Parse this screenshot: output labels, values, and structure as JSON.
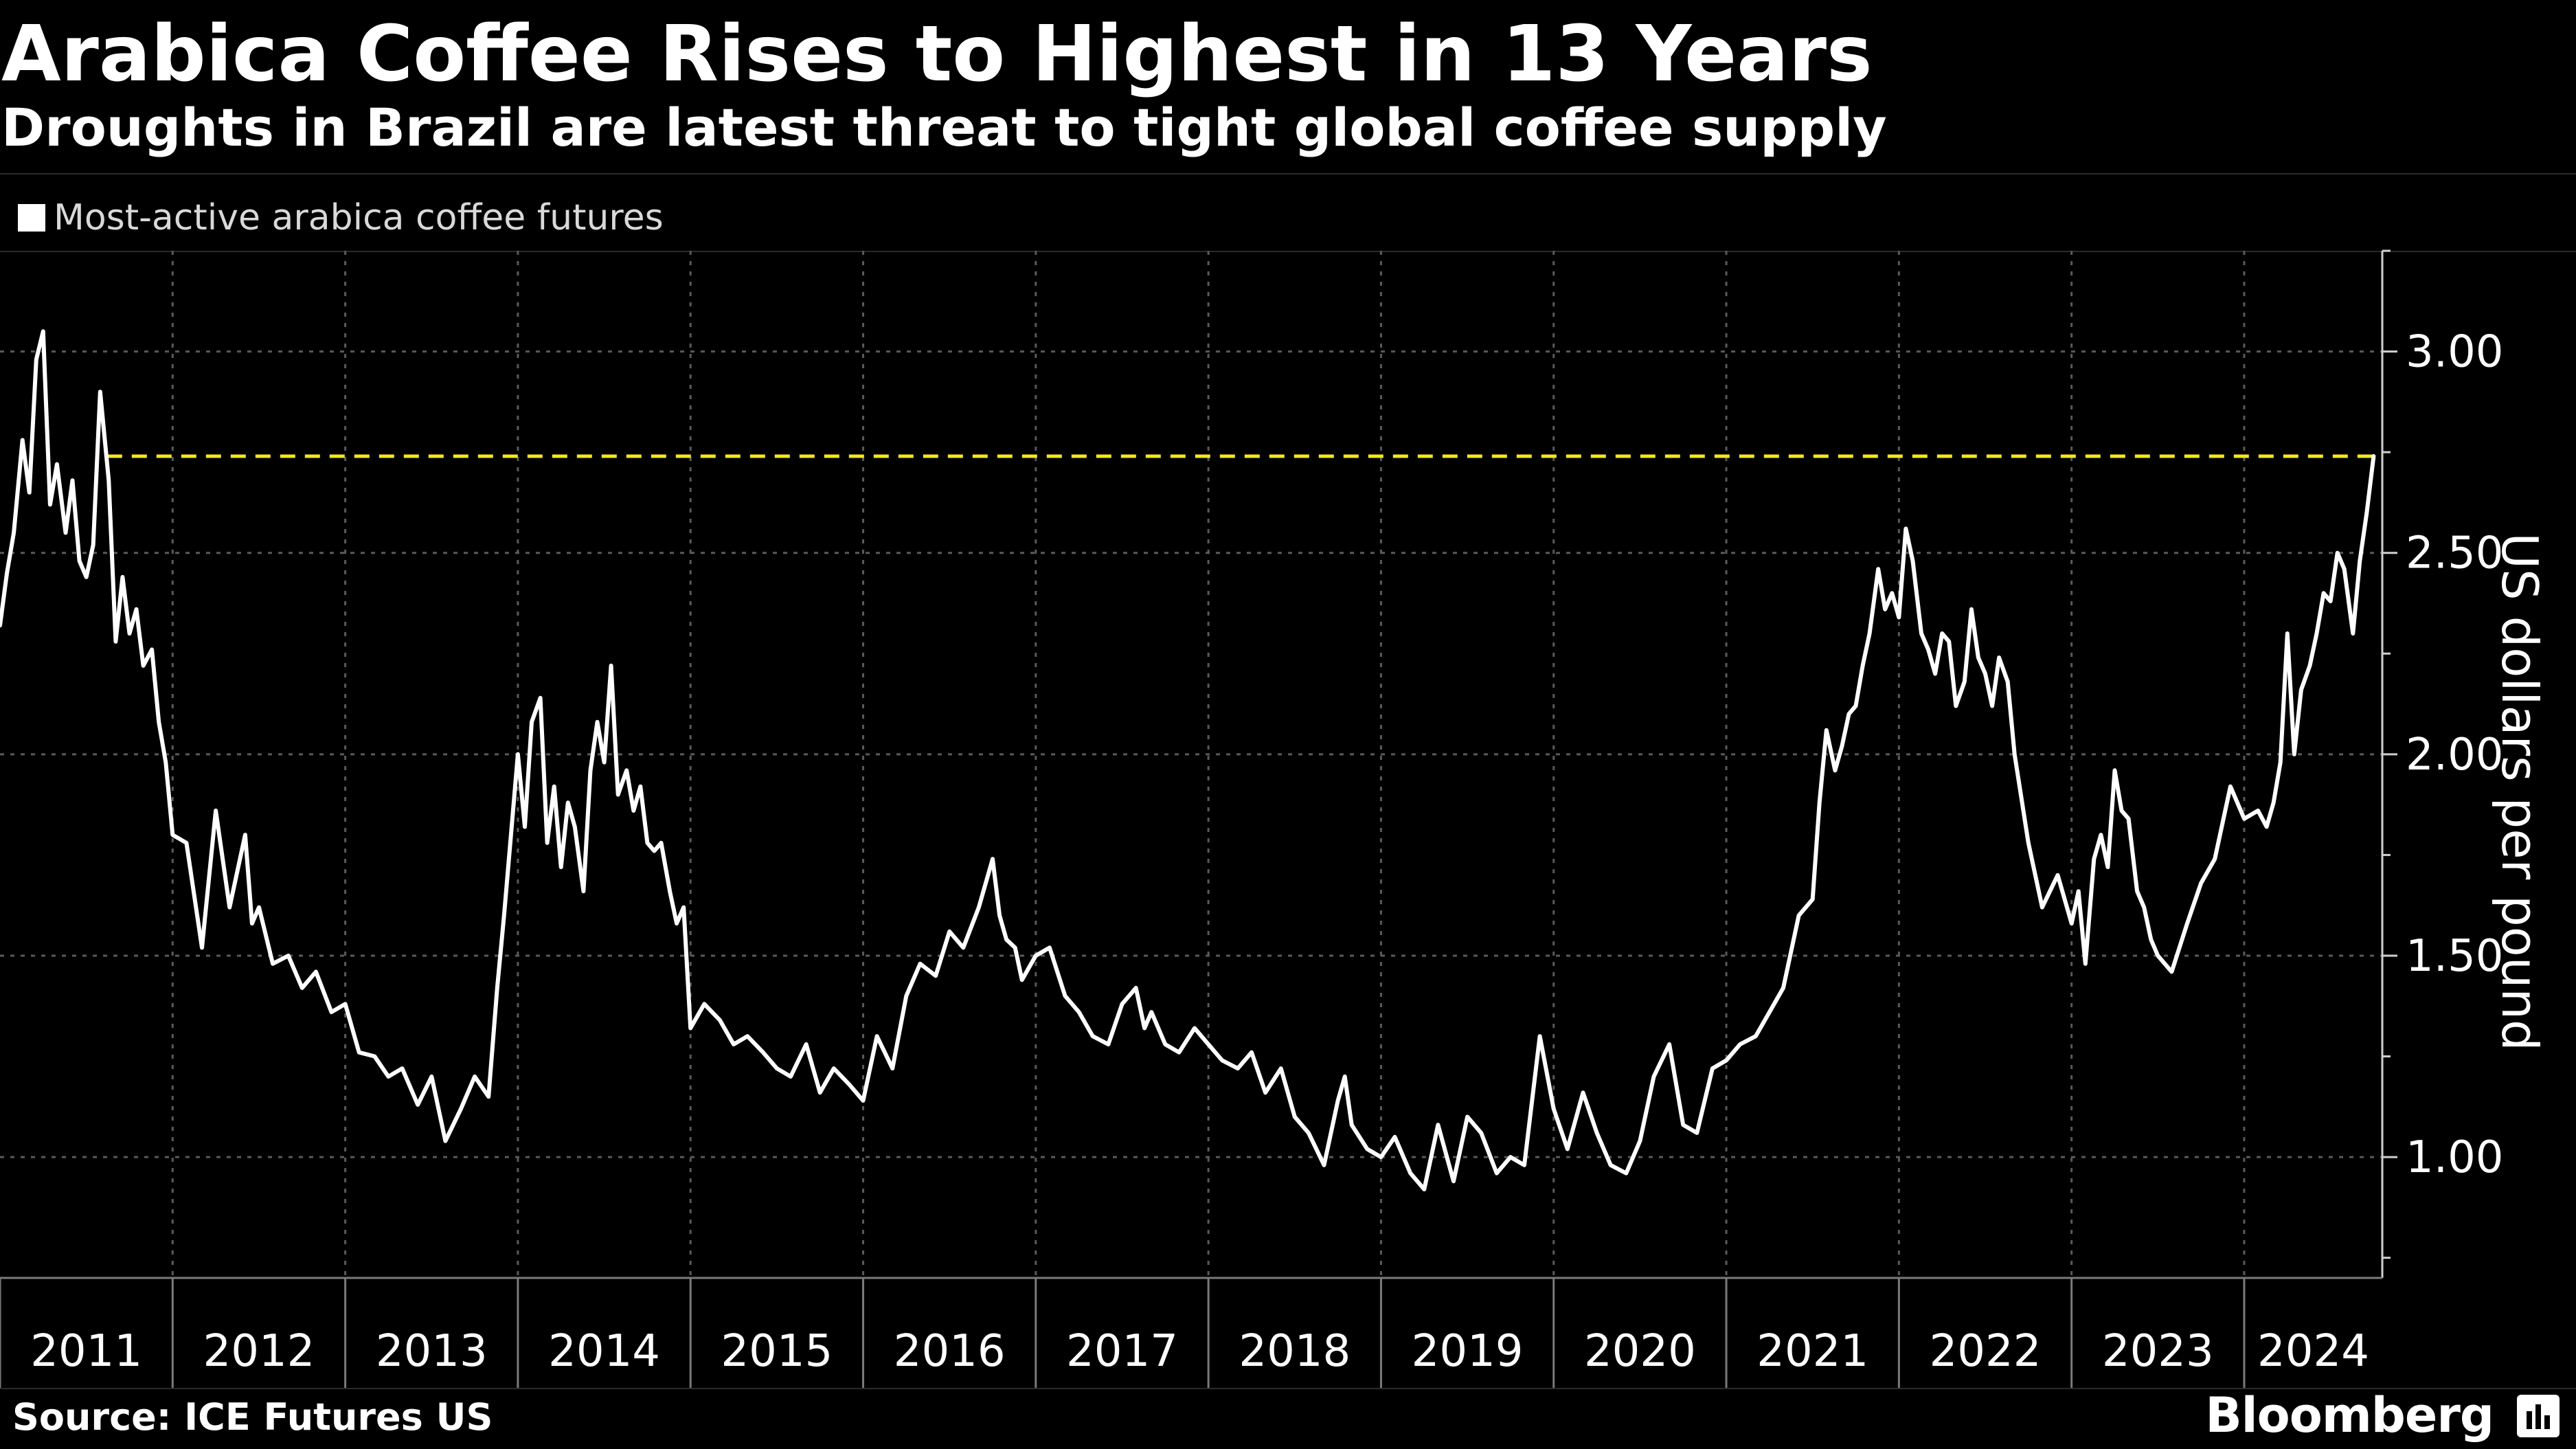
{
  "header": {
    "title": "Arabica Coffee Rises to Highest in 13 Years",
    "subtitle": "Droughts in Brazil are latest threat to tight global coffee supply"
  },
  "legend": {
    "label": "Most-active arabica coffee futures"
  },
  "footer": {
    "source": "Source: ICE Futures US",
    "brand": "Bloomberg",
    "brand_icon": "bloomberg-terminal-icon"
  },
  "colors": {
    "background": "#000000",
    "series": "#ffffff",
    "reference_line": "#f5e71c",
    "grid": "#5a5a5a",
    "text": "#ffffff",
    "muted_text": "#d9d9d9"
  },
  "chart_data": {
    "type": "line",
    "title": "Arabica Coffee Rises to Highest in 13 Years",
    "subtitle": "Droughts in Brazil are latest threat to tight global coffee supply",
    "xlabel": "",
    "ylabel": "US dollars per pound",
    "ylim": [
      0.7,
      3.25
    ],
    "xlim": [
      2011.0,
      2024.8
    ],
    "y_ticks": [
      1.0,
      1.5,
      2.0,
      2.5,
      3.0
    ],
    "y_tick_labels": [
      "1.00",
      "1.50",
      "2.00",
      "2.50",
      "3.00"
    ],
    "x_tick_labels": [
      "2011",
      "2012",
      "2013",
      "2014",
      "2015",
      "2016",
      "2017",
      "2018",
      "2019",
      "2020",
      "2021",
      "2022",
      "2023",
      "2024"
    ],
    "grid": true,
    "legend_position": "top-left",
    "reference_line": {
      "value": 2.74,
      "style": "dashed"
    },
    "series": [
      {
        "name": "Most-active arabica coffee futures",
        "x": [
          2011.0,
          2011.04,
          2011.08,
          2011.13,
          2011.17,
          2011.21,
          2011.25,
          2011.29,
          2011.33,
          2011.38,
          2011.42,
          2011.46,
          2011.5,
          2011.54,
          2011.58,
          2011.63,
          2011.67,
          2011.71,
          2011.75,
          2011.79,
          2011.83,
          2011.88,
          2011.92,
          2011.96,
          2012.0,
          2012.08,
          2012.17,
          2012.25,
          2012.33,
          2012.42,
          2012.46,
          2012.5,
          2012.58,
          2012.67,
          2012.75,
          2012.83,
          2012.92,
          2013.0,
          2013.08,
          2013.17,
          2013.25,
          2013.33,
          2013.42,
          2013.5,
          2013.58,
          2013.67,
          2013.75,
          2013.83,
          2013.88,
          2013.92,
          2014.0,
          2014.04,
          2014.08,
          2014.13,
          2014.17,
          2014.21,
          2014.25,
          2014.29,
          2014.33,
          2014.38,
          2014.42,
          2014.46,
          2014.5,
          2014.54,
          2014.58,
          2014.63,
          2014.67,
          2014.71,
          2014.75,
          2014.79,
          2014.83,
          2014.88,
          2014.92,
          2014.96,
          2015.0,
          2015.08,
          2015.17,
          2015.25,
          2015.33,
          2015.42,
          2015.5,
          2015.58,
          2015.67,
          2015.75,
          2015.83,
          2015.92,
          2016.0,
          2016.08,
          2016.17,
          2016.25,
          2016.33,
          2016.42,
          2016.5,
          2016.58,
          2016.67,
          2016.75,
          2016.79,
          2016.83,
          2016.88,
          2016.92,
          2017.0,
          2017.08,
          2017.17,
          2017.25,
          2017.33,
          2017.42,
          2017.5,
          2017.58,
          2017.63,
          2017.67,
          2017.75,
          2017.83,
          2017.92,
          2018.0,
          2018.08,
          2018.17,
          2018.25,
          2018.33,
          2018.42,
          2018.5,
          2018.58,
          2018.67,
          2018.75,
          2018.79,
          2018.83,
          2018.92,
          2019.0,
          2019.08,
          2019.17,
          2019.25,
          2019.33,
          2019.42,
          2019.5,
          2019.58,
          2019.67,
          2019.75,
          2019.83,
          2019.92,
          2020.0,
          2020.08,
          2020.17,
          2020.25,
          2020.33,
          2020.42,
          2020.5,
          2020.58,
          2020.67,
          2020.75,
          2020.83,
          2020.92,
          2021.0,
          2021.08,
          2021.17,
          2021.25,
          2021.33,
          2021.42,
          2021.5,
          2021.54,
          2021.58,
          2021.63,
          2021.67,
          2021.71,
          2021.75,
          2021.79,
          2021.83,
          2021.88,
          2021.92,
          2021.96,
          2022.0,
          2022.04,
          2022.08,
          2022.13,
          2022.17,
          2022.21,
          2022.25,
          2022.29,
          2022.33,
          2022.38,
          2022.42,
          2022.46,
          2022.5,
          2022.54,
          2022.58,
          2022.63,
          2022.67,
          2022.75,
          2022.83,
          2022.92,
          2023.0,
          2023.04,
          2023.08,
          2023.13,
          2023.17,
          2023.21,
          2023.25,
          2023.29,
          2023.33,
          2023.38,
          2023.42,
          2023.46,
          2023.5,
          2023.58,
          2023.67,
          2023.75,
          2023.83,
          2023.92,
          2024.0,
          2024.08,
          2024.13,
          2024.17,
          2024.21,
          2024.25,
          2024.29,
          2024.33,
          2024.38,
          2024.42,
          2024.46,
          2024.5,
          2024.54,
          2024.58,
          2024.63,
          2024.67,
          2024.71,
          2024.75
        ],
        "y": [
          2.32,
          2.45,
          2.55,
          2.78,
          2.65,
          2.98,
          3.05,
          2.62,
          2.72,
          2.55,
          2.68,
          2.48,
          2.44,
          2.52,
          2.9,
          2.68,
          2.28,
          2.44,
          2.3,
          2.36,
          2.22,
          2.26,
          2.08,
          1.98,
          1.8,
          1.78,
          1.52,
          1.86,
          1.62,
          1.8,
          1.58,
          1.62,
          1.48,
          1.5,
          1.42,
          1.46,
          1.36,
          1.38,
          1.26,
          1.25,
          1.2,
          1.22,
          1.13,
          1.2,
          1.04,
          1.12,
          1.2,
          1.15,
          1.42,
          1.6,
          2.0,
          1.82,
          2.08,
          2.14,
          1.78,
          1.92,
          1.72,
          1.88,
          1.82,
          1.66,
          1.96,
          2.08,
          1.98,
          2.22,
          1.9,
          1.96,
          1.86,
          1.92,
          1.78,
          1.76,
          1.78,
          1.66,
          1.58,
          1.62,
          1.32,
          1.38,
          1.34,
          1.28,
          1.3,
          1.26,
          1.22,
          1.2,
          1.28,
          1.16,
          1.22,
          1.18,
          1.14,
          1.3,
          1.22,
          1.4,
          1.48,
          1.45,
          1.56,
          1.52,
          1.62,
          1.74,
          1.6,
          1.54,
          1.52,
          1.44,
          1.5,
          1.52,
          1.4,
          1.36,
          1.3,
          1.28,
          1.38,
          1.42,
          1.32,
          1.36,
          1.28,
          1.26,
          1.32,
          1.28,
          1.24,
          1.22,
          1.26,
          1.16,
          1.22,
          1.1,
          1.06,
          0.98,
          1.14,
          1.2,
          1.08,
          1.02,
          1.0,
          1.05,
          0.96,
          0.92,
          1.08,
          0.94,
          1.1,
          1.06,
          0.96,
          1.0,
          0.98,
          1.3,
          1.12,
          1.02,
          1.16,
          1.06,
          0.98,
          0.96,
          1.04,
          1.2,
          1.28,
          1.08,
          1.06,
          1.22,
          1.24,
          1.28,
          1.3,
          1.36,
          1.42,
          1.6,
          1.64,
          1.88,
          2.06,
          1.96,
          2.02,
          2.1,
          2.12,
          2.22,
          2.3,
          2.46,
          2.36,
          2.4,
          2.34,
          2.56,
          2.48,
          2.3,
          2.26,
          2.2,
          2.3,
          2.28,
          2.12,
          2.18,
          2.36,
          2.24,
          2.2,
          2.12,
          2.24,
          2.18,
          2.0,
          1.78,
          1.62,
          1.7,
          1.58,
          1.66,
          1.48,
          1.74,
          1.8,
          1.72,
          1.96,
          1.86,
          1.84,
          1.66,
          1.62,
          1.54,
          1.5,
          1.46,
          1.58,
          1.68,
          1.74,
          1.92,
          1.84,
          1.86,
          1.82,
          1.88,
          1.98,
          2.3,
          2.0,
          2.16,
          2.22,
          2.3,
          2.4,
          2.38,
          2.5,
          2.46,
          2.3,
          2.48,
          2.6,
          2.74
        ]
      }
    ]
  }
}
